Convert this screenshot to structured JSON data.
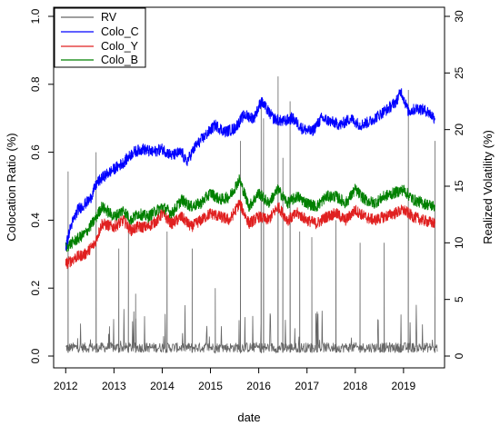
{
  "chart_data": {
    "type": "line",
    "title": "",
    "xlabel": "date",
    "ylabel_left": "Colocation Ratio (%)",
    "ylabel_right": "Realized Volatility (%)",
    "xlim": [
      2011.75,
      2019.85
    ],
    "ylim_left": [
      0,
      1.0
    ],
    "ylim_right": [
      0,
      30
    ],
    "x_ticks": [
      2012,
      2013,
      2014,
      2015,
      2016,
      2017,
      2018,
      2019
    ],
    "x_tick_labels": [
      "2012",
      "2013",
      "2014",
      "2015",
      "2016",
      "2017",
      "2018",
      "2019"
    ],
    "y_left_ticks": [
      0,
      0.2,
      0.4,
      0.6,
      0.8,
      1.0
    ],
    "y_left_tick_labels": [
      "0.0",
      "0.2",
      "0.4",
      "0.6",
      "0.8",
      "1.0"
    ],
    "y_right_ticks": [
      0,
      5,
      10,
      15,
      20,
      25,
      30
    ],
    "y_right_tick_labels": [
      "0",
      "5",
      "10",
      "15",
      "20",
      "25",
      "30"
    ],
    "grid": false,
    "legend_position": "top-left",
    "series": [
      {
        "name": "Colo_C",
        "axis": "left",
        "color": "#0000ff",
        "x": [
          2012.0,
          2012.1,
          2012.25,
          2012.5,
          2012.65,
          2012.8,
          2013.0,
          2013.2,
          2013.4,
          2013.6,
          2013.8,
          2014.0,
          2014.2,
          2014.4,
          2014.5,
          2014.7,
          2014.9,
          2015.1,
          2015.3,
          2015.5,
          2015.7,
          2015.9,
          2016.05,
          2016.3,
          2016.5,
          2016.7,
          2016.9,
          2017.1,
          2017.3,
          2017.5,
          2017.7,
          2017.9,
          2018.1,
          2018.3,
          2018.5,
          2018.7,
          2018.85,
          2018.95,
          2019.1,
          2019.3,
          2019.5,
          2019.65
        ],
        "values": [
          0.32,
          0.38,
          0.43,
          0.46,
          0.51,
          0.53,
          0.55,
          0.57,
          0.6,
          0.61,
          0.6,
          0.61,
          0.59,
          0.6,
          0.57,
          0.62,
          0.65,
          0.68,
          0.66,
          0.67,
          0.71,
          0.7,
          0.75,
          0.7,
          0.69,
          0.7,
          0.67,
          0.66,
          0.7,
          0.69,
          0.68,
          0.7,
          0.68,
          0.69,
          0.71,
          0.73,
          0.75,
          0.78,
          0.72,
          0.73,
          0.72,
          0.7
        ]
      },
      {
        "name": "Colo_Y",
        "axis": "left",
        "color": "#e02020",
        "x": [
          2012.0,
          2012.2,
          2012.4,
          2012.6,
          2012.75,
          2013.0,
          2013.2,
          2013.35,
          2013.5,
          2013.7,
          2013.9,
          2014.0,
          2014.2,
          2014.4,
          2014.6,
          2014.8,
          2015.0,
          2015.2,
          2015.4,
          2015.6,
          2015.8,
          2016.0,
          2016.2,
          2016.4,
          2016.6,
          2016.8,
          2017.0,
          2017.2,
          2017.4,
          2017.6,
          2017.8,
          2018.0,
          2018.2,
          2018.4,
          2018.6,
          2018.8,
          2019.0,
          2019.2,
          2019.4,
          2019.65
        ],
        "values": [
          0.27,
          0.29,
          0.3,
          0.33,
          0.39,
          0.38,
          0.4,
          0.37,
          0.38,
          0.38,
          0.4,
          0.42,
          0.39,
          0.41,
          0.38,
          0.4,
          0.42,
          0.41,
          0.4,
          0.45,
          0.39,
          0.41,
          0.4,
          0.44,
          0.4,
          0.42,
          0.4,
          0.39,
          0.41,
          0.42,
          0.4,
          0.43,
          0.41,
          0.4,
          0.41,
          0.42,
          0.43,
          0.41,
          0.4,
          0.39
        ]
      },
      {
        "name": "Colo_B",
        "axis": "left",
        "color": "#008000",
        "x": [
          2012.0,
          2012.2,
          2012.4,
          2012.6,
          2012.75,
          2013.0,
          2013.2,
          2013.35,
          2013.5,
          2013.7,
          2013.9,
          2014.0,
          2014.2,
          2014.4,
          2014.6,
          2014.8,
          2015.0,
          2015.2,
          2015.4,
          2015.6,
          2015.8,
          2016.0,
          2016.2,
          2016.4,
          2016.6,
          2016.8,
          2017.0,
          2017.2,
          2017.4,
          2017.6,
          2017.8,
          2018.0,
          2018.2,
          2018.4,
          2018.6,
          2018.8,
          2019.0,
          2019.2,
          2019.4,
          2019.65
        ],
        "values": [
          0.32,
          0.34,
          0.36,
          0.4,
          0.44,
          0.41,
          0.43,
          0.4,
          0.42,
          0.41,
          0.43,
          0.44,
          0.42,
          0.46,
          0.44,
          0.45,
          0.48,
          0.46,
          0.47,
          0.52,
          0.44,
          0.48,
          0.45,
          0.49,
          0.45,
          0.47,
          0.45,
          0.44,
          0.47,
          0.47,
          0.45,
          0.49,
          0.46,
          0.45,
          0.47,
          0.48,
          0.49,
          0.46,
          0.45,
          0.44
        ]
      },
      {
        "name": "RV",
        "axis": "right",
        "color": "#666666",
        "baseline": 0.3,
        "spikes": [
          {
            "x": 2012.05,
            "value": 16.3
          },
          {
            "x": 2012.63,
            "value": 18.0
          },
          {
            "x": 2013.1,
            "value": 9.5
          },
          {
            "x": 2013.3,
            "value": 11.5
          },
          {
            "x": 2013.45,
            "value": 5.5
          },
          {
            "x": 2014.1,
            "value": 11.0
          },
          {
            "x": 2014.62,
            "value": 9.5
          },
          {
            "x": 2015.1,
            "value": 6.0
          },
          {
            "x": 2015.62,
            "value": 19.0
          },
          {
            "x": 2016.05,
            "value": 22.0
          },
          {
            "x": 2016.1,
            "value": 21.0
          },
          {
            "x": 2016.4,
            "value": 24.7
          },
          {
            "x": 2016.5,
            "value": 17.5
          },
          {
            "x": 2016.65,
            "value": 22.5
          },
          {
            "x": 2016.85,
            "value": 11.0
          },
          {
            "x": 2017.1,
            "value": 10.5
          },
          {
            "x": 2017.6,
            "value": 12.0
          },
          {
            "x": 2018.1,
            "value": 10.0
          },
          {
            "x": 2018.6,
            "value": 10.0
          },
          {
            "x": 2019.1,
            "value": 23.5
          },
          {
            "x": 2019.65,
            "value": 19.0
          }
        ]
      }
    ]
  }
}
